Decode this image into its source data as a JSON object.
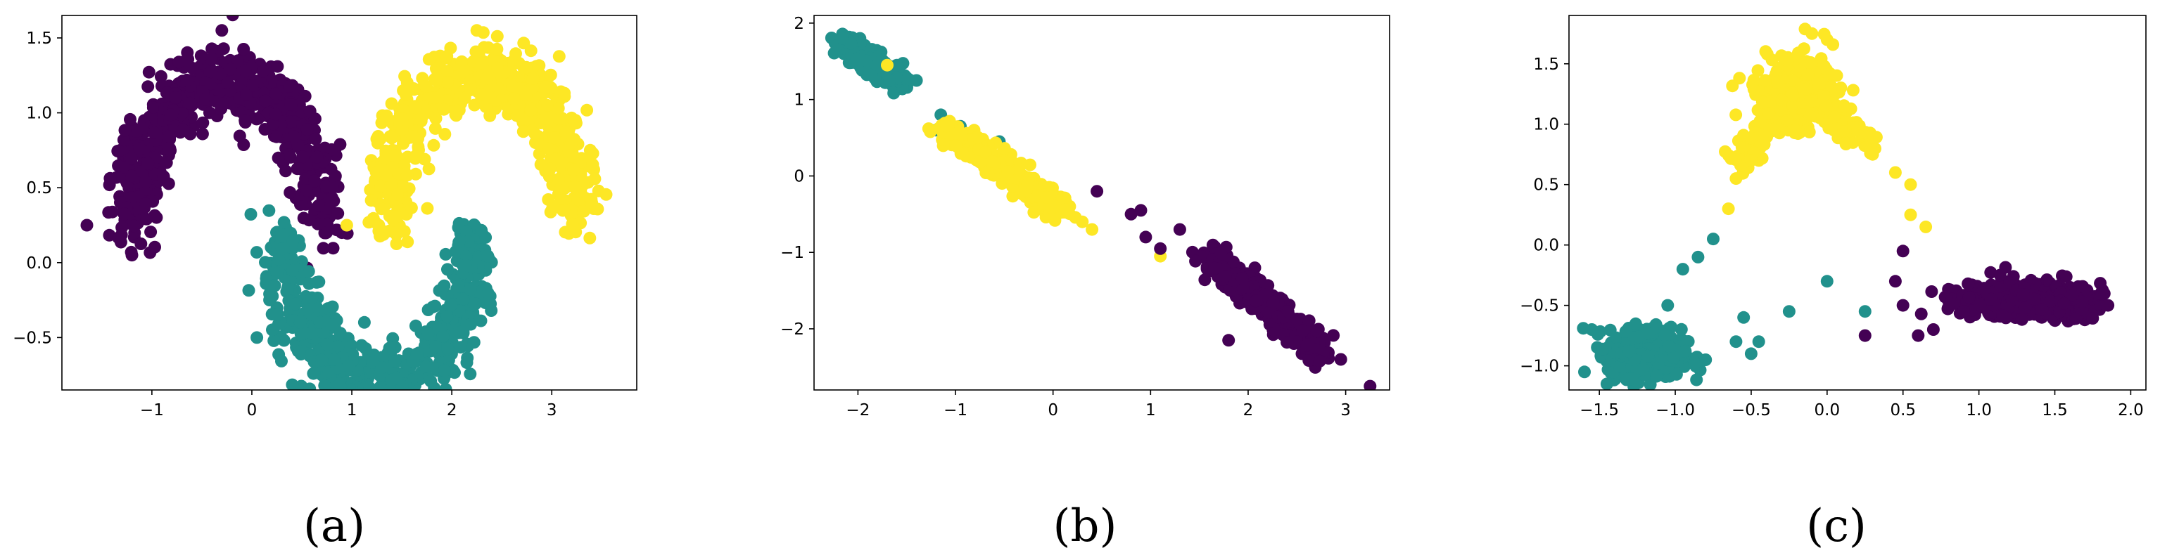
{
  "colors": {
    "purple": "#440154",
    "teal": "#21918c",
    "yellow": "#fde725"
  },
  "chart_data": [
    {
      "type": "scatter",
      "caption": "(a)",
      "xlim": [
        -1.9,
        3.85
      ],
      "ylim": [
        -0.85,
        1.65
      ],
      "xticks": [
        -1,
        0,
        1,
        2,
        3
      ],
      "yticks": [
        -0.5,
        0.0,
        0.5,
        1.0,
        1.5
      ],
      "ytick_labels": [
        "−0.5",
        "0.0",
        "0.5",
        "1.0",
        "1.5"
      ],
      "xtick_labels": [
        "−1",
        "0",
        "1",
        "2",
        "3"
      ],
      "grid": false,
      "series": [
        {
          "color": "purple",
          "shape": "arc",
          "cx": -0.25,
          "cy": 0.25,
          "r": 0.95,
          "t0": 0.0,
          "t1": 3.14,
          "spread": 0.12,
          "n": 650,
          "extra": [
            [
              -1.65,
              0.25
            ],
            [
              -1.2,
              0.05
            ],
            [
              0.9,
              0.2
            ],
            [
              -0.3,
              1.55
            ]
          ]
        },
        {
          "color": "teal",
          "shape": "arc",
          "cx": 1.25,
          "cy": 0.15,
          "r": 0.95,
          "t0": 3.14,
          "t1": 6.28,
          "spread": 0.12,
          "n": 650,
          "extra": [
            [
              0.05,
              -0.5
            ],
            [
              1.3,
              -0.7
            ],
            [
              0.7,
              -0.65
            ]
          ]
        },
        {
          "color": "yellow",
          "shape": "arc",
          "cx": 2.3,
          "cy": 0.3,
          "r": 0.95,
          "t0": 0.0,
          "t1": 3.14,
          "spread": 0.12,
          "n": 650,
          "extra": [
            [
              0.95,
              0.25
            ],
            [
              3.4,
              0.4
            ],
            [
              2.25,
              1.55
            ]
          ]
        }
      ]
    },
    {
      "type": "scatter",
      "caption": "(b)",
      "xlim": [
        -2.45,
        3.45
      ],
      "ylim": [
        -2.8,
        2.1
      ],
      "xticks": [
        -2,
        -1,
        0,
        1,
        2,
        3
      ],
      "yticks": [
        -2,
        -1,
        0,
        1,
        2
      ],
      "xtick_labels": [
        "−2",
        "−1",
        "0",
        "1",
        "2",
        "3"
      ],
      "ytick_labels": [
        "−2",
        "−1",
        "0",
        "1",
        "2"
      ],
      "grid": false,
      "series": [
        {
          "color": "teal",
          "shape": "line",
          "x0": -2.15,
          "y0": 1.75,
          "x1": -1.55,
          "y1": 1.2,
          "spread": 0.06,
          "n": 420,
          "extra": [
            [
              -1.15,
              0.8
            ],
            [
              -1.2,
              0.6
            ],
            [
              -0.95,
              0.65
            ],
            [
              -0.55,
              0.45
            ],
            [
              -0.5,
              0.2
            ],
            [
              -1.0,
              0.5
            ],
            [
              -1.4,
              1.25
            ],
            [
              -1.6,
              1.45
            ]
          ]
        },
        {
          "color": "yellow",
          "shape": "line",
          "x0": -1.1,
          "y0": 0.6,
          "x1": 0.1,
          "y1": -0.45,
          "spread": 0.07,
          "n": 420,
          "extra": [
            [
              -1.7,
              1.45
            ],
            [
              0.4,
              -0.7
            ],
            [
              1.1,
              -1.05
            ],
            [
              0.3,
              -0.6
            ]
          ]
        },
        {
          "color": "purple",
          "shape": "line",
          "x0": 1.6,
          "y0": -1.05,
          "x1": 2.75,
          "y1": -2.3,
          "spread": 0.08,
          "n": 420,
          "extra": [
            [
              0.45,
              -0.2
            ],
            [
              0.8,
              -0.5
            ],
            [
              0.95,
              -0.8
            ],
            [
              1.1,
              -0.95
            ],
            [
              3.25,
              -2.75
            ],
            [
              1.8,
              -2.15
            ],
            [
              2.95,
              -2.4
            ],
            [
              1.3,
              -0.7
            ],
            [
              0.9,
              -0.45
            ]
          ]
        }
      ]
    },
    {
      "type": "scatter",
      "caption": "(c)",
      "xlim": [
        -1.7,
        2.1
      ],
      "ylim": [
        -1.2,
        1.9
      ],
      "xticks": [
        -1.5,
        -1.0,
        -0.5,
        0.0,
        0.5,
        1.0,
        1.5,
        2.0
      ],
      "xtick_labels": [
        "−1.5",
        "−1.0",
        "−0.5",
        "0.0",
        "0.5",
        "1.0",
        "1.5",
        "2.0"
      ],
      "yticks": [
        -1.0,
        -0.5,
        0.0,
        0.5,
        1.0,
        1.5
      ],
      "ytick_labels": [
        "−1.0",
        "−0.5",
        "0.0",
        "0.5",
        "1.0",
        "1.5"
      ],
      "grid": false,
      "series": [
        {
          "color": "teal",
          "shape": "blob",
          "cx": -1.2,
          "cy": -0.9,
          "sx": 0.12,
          "sy": 0.1,
          "n": 500,
          "extra": [
            [
              -1.05,
              -0.5
            ],
            [
              -0.95,
              -0.2
            ],
            [
              -0.85,
              -0.1
            ],
            [
              -0.75,
              0.05
            ],
            [
              -0.6,
              -0.8
            ],
            [
              -0.8,
              -0.95
            ],
            [
              -0.45,
              -0.8
            ],
            [
              -0.55,
              -0.6
            ],
            [
              -0.5,
              -0.9
            ],
            [
              0.25,
              -0.55
            ],
            [
              0.0,
              -0.3
            ],
            [
              -0.25,
              -0.55
            ],
            [
              -1.55,
              -0.7
            ],
            [
              -1.45,
              -1.15
            ]
          ]
        },
        {
          "color": "yellow",
          "shape": "tri",
          "cx": -0.2,
          "cy": 1.25,
          "sx": 0.15,
          "sy": 0.15,
          "n": 420,
          "extra": [
            [
              -0.6,
              0.55
            ],
            [
              -0.65,
              0.3
            ],
            [
              -0.5,
              0.7
            ],
            [
              0.2,
              0.95
            ],
            [
              0.3,
              0.75
            ],
            [
              0.45,
              0.6
            ],
            [
              0.55,
              0.5
            ],
            [
              0.55,
              0.25
            ],
            [
              0.65,
              0.15
            ],
            [
              -0.1,
              1.75
            ],
            [
              0.0,
              1.7
            ],
            [
              -0.3,
              1.2
            ]
          ]
        },
        {
          "color": "purple",
          "shape": "blob",
          "cx": 1.3,
          "cy": -0.45,
          "sx": 0.22,
          "sy": 0.07,
          "n": 520,
          "extra": [
            [
              0.5,
              -0.05
            ],
            [
              0.45,
              -0.3
            ],
            [
              0.5,
              -0.5
            ],
            [
              0.25,
              -0.75
            ],
            [
              0.6,
              -0.75
            ],
            [
              0.9,
              -0.55
            ],
            [
              1.85,
              -0.5
            ],
            [
              0.7,
              -0.7
            ]
          ]
        }
      ]
    }
  ]
}
